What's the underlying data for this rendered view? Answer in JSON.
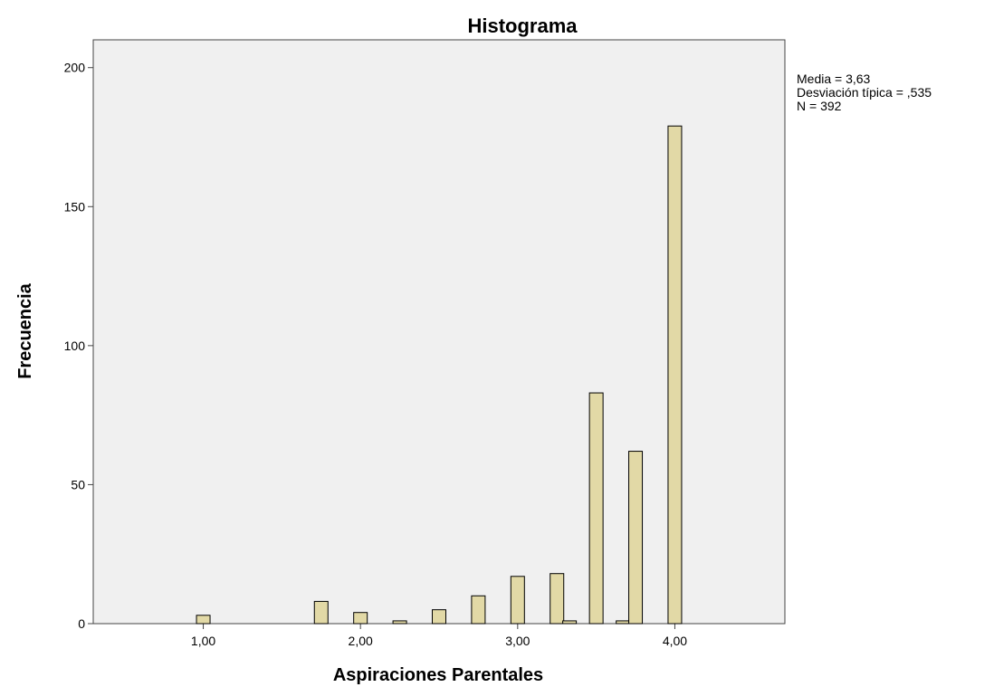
{
  "chart_data": {
    "type": "bar",
    "title": "Histograma",
    "xlabel": "Aspiraciones Parentales",
    "ylabel": "Frecuencia",
    "xlim": [
      0.3,
      4.7
    ],
    "ylim": [
      0,
      210
    ],
    "x_ticks": [
      1.0,
      2.0,
      3.0,
      4.0
    ],
    "x_tick_labels": [
      "1,00",
      "2,00",
      "3,00",
      "4,00"
    ],
    "y_ticks": [
      0,
      50,
      100,
      150,
      200
    ],
    "y_tick_labels": [
      "0",
      "50",
      "100",
      "150",
      "200"
    ],
    "bars": [
      {
        "x": 1.0,
        "value": 3
      },
      {
        "x": 1.75,
        "value": 8
      },
      {
        "x": 2.0,
        "value": 4
      },
      {
        "x": 2.25,
        "value": 1
      },
      {
        "x": 2.5,
        "value": 5
      },
      {
        "x": 2.75,
        "value": 10
      },
      {
        "x": 3.0,
        "value": 17
      },
      {
        "x": 3.25,
        "value": 18
      },
      {
        "x": 3.33,
        "value": 1
      },
      {
        "x": 3.5,
        "value": 83
      },
      {
        "x": 3.67,
        "value": 1
      },
      {
        "x": 3.75,
        "value": 62
      },
      {
        "x": 4.0,
        "value": 179
      }
    ],
    "bar_color": "#e2d9a6",
    "plot_background": "#f0f0f0",
    "grid": false
  },
  "stats": {
    "media": "Media = 3,63",
    "desviacion": "Desviación típica = ,535",
    "n": "N = 392"
  }
}
